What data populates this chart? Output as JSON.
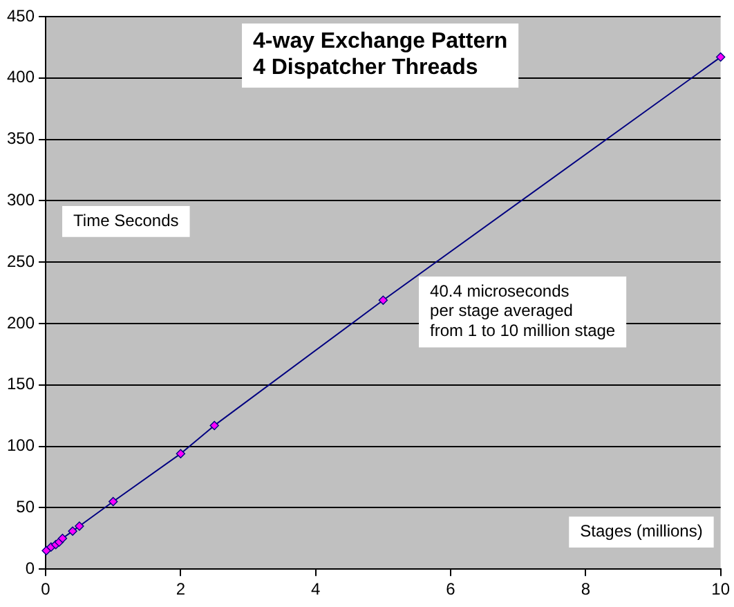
{
  "chart_data": {
    "type": "line",
    "title": "4-way Exchange Pattern\n4 Dispatcher Threads",
    "xlabel": "Stages (millions)",
    "ylabel": "Time Seconds",
    "annotations": [
      "40.4 microseconds\nper stage averaged\nfrom 1 to 10 million stage"
    ],
    "x": [
      0.01,
      0.08,
      0.15,
      0.2,
      0.25,
      0.4,
      0.5,
      1,
      2,
      2.5,
      5,
      10
    ],
    "series": [
      {
        "color": "#ff00ff",
        "values": [
          15,
          18,
          20,
          22,
          25,
          31,
          35,
          55,
          94,
          117,
          219,
          417
        ]
      }
    ],
    "xlim": [
      0,
      10
    ],
    "xticks": [
      0,
      2,
      4,
      6,
      8,
      10
    ],
    "ylim": [
      0,
      450
    ],
    "yticks": [
      0,
      50,
      100,
      150,
      200,
      250,
      300,
      350,
      400,
      450
    ],
    "grid": "y",
    "legend": false,
    "marker": "diamond",
    "line_style": "solid"
  }
}
